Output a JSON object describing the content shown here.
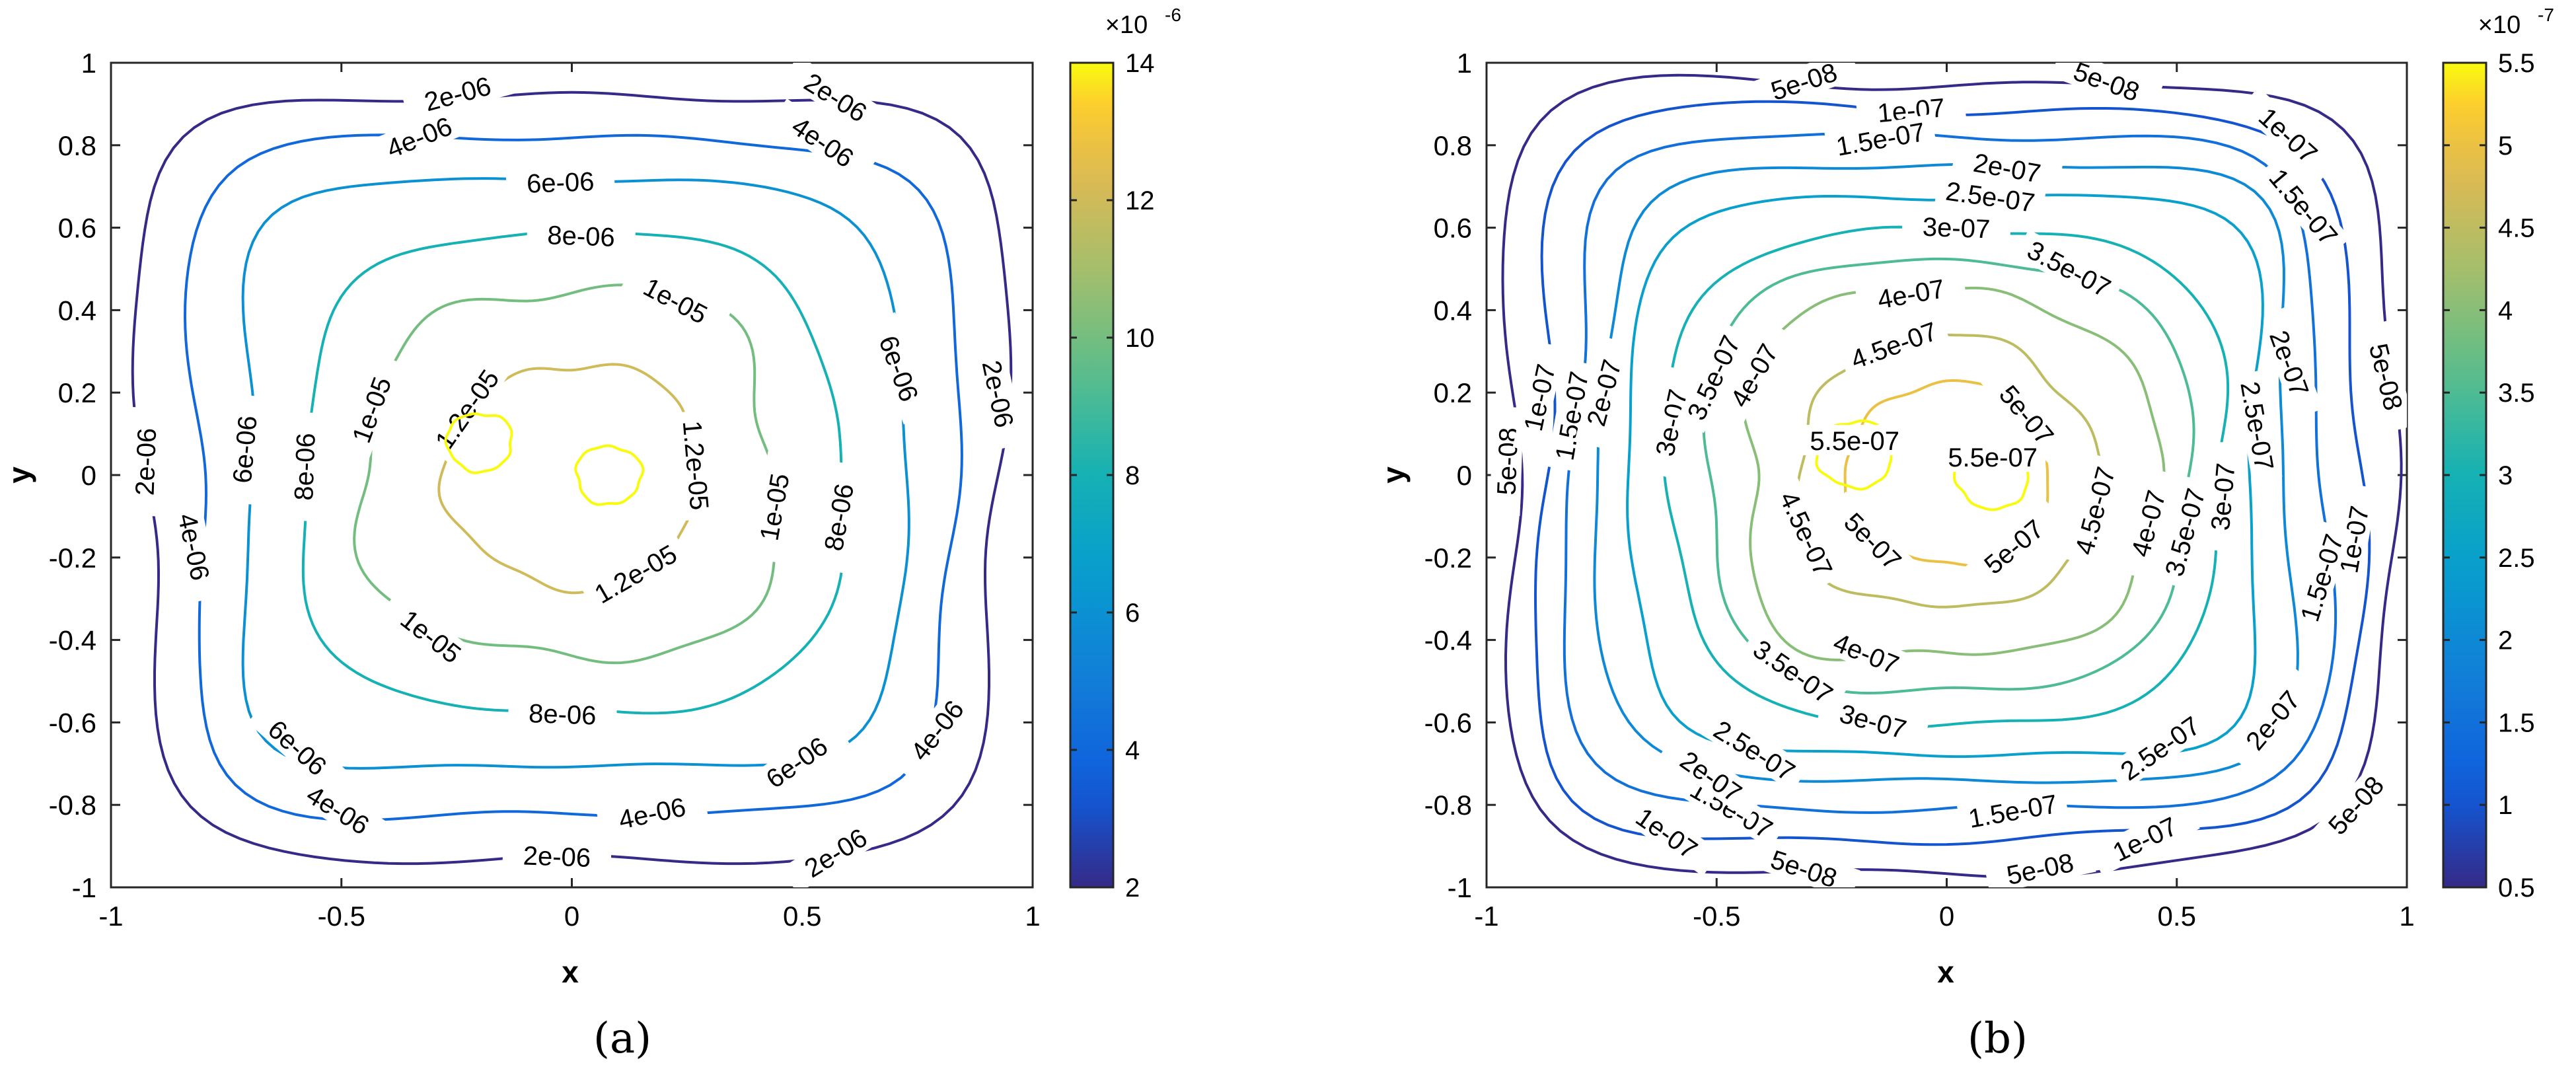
{
  "chart_data": [
    {
      "type": "contour",
      "caption": "(a)",
      "xlabel": "x",
      "ylabel": "y",
      "xlim": [
        -1,
        1
      ],
      "ylim": [
        -1,
        1
      ],
      "xticks": [
        -1,
        -0.5,
        0,
        0.5,
        1
      ],
      "xtick_labels": [
        "-1",
        "-0.5",
        "0",
        "0.5",
        "1"
      ],
      "yticks": [
        -1,
        -0.8,
        -0.6,
        -0.4,
        -0.2,
        0,
        0.2,
        0.4,
        0.6,
        0.8,
        1
      ],
      "ytick_labels": [
        "-1",
        "-0.8",
        "-0.6",
        "-0.4",
        "-0.2",
        "0",
        "0.2",
        "0.4",
        "0.6",
        "0.8",
        "1"
      ],
      "colorbar": {
        "min": 2,
        "max": 14,
        "exponent": "×10",
        "exponent_power": "-6",
        "ticks": [
          2,
          4,
          6,
          8,
          10,
          12,
          14
        ],
        "tick_labels": [
          "2",
          "4",
          "6",
          "8",
          "10",
          "12",
          "14"
        ]
      },
      "levels": [
        {
          "value": 2,
          "label": "2e-06",
          "radius": 0.925,
          "label_angles": [
            105,
            58,
            178,
            12,
            268,
            302
          ]
        },
        {
          "value": 4,
          "label": "4e-06",
          "radius": 0.82,
          "label_angles": [
            112,
            56,
            192,
            322,
            238,
            282
          ]
        },
        {
          "value": 6,
          "label": "6e-06",
          "radius": 0.71,
          "label_angles": [
            92,
            20,
            175,
            228,
            305
          ]
        },
        {
          "value": 8,
          "label": "8e-06",
          "radius": 0.58,
          "label_angles": [
            88,
            178,
            350,
            268
          ]
        },
        {
          "value": 10,
          "label": "1e-05",
          "radius": 0.44,
          "label_angles": [
            62,
            160,
            350,
            232
          ]
        },
        {
          "value": 12,
          "label": "1.2e-05",
          "radius": 0.27,
          "label_angles": [
            145,
            5,
            300
          ]
        },
        {
          "value": 14,
          "label": "",
          "radius": 0.07,
          "label_angles": [],
          "centers": [
            [
              -0.2,
              0.08
            ],
            [
              0.08,
              0.0
            ]
          ]
        }
      ]
    },
    {
      "type": "contour",
      "caption": "(b)",
      "xlabel": "x",
      "ylabel": "y",
      "xlim": [
        -1,
        1
      ],
      "ylim": [
        -1,
        1
      ],
      "xticks": [
        -1,
        -0.5,
        0,
        0.5,
        1
      ],
      "xtick_labels": [
        "-1",
        "-0.5",
        "0",
        "0.5",
        "1"
      ],
      "yticks": [
        -1,
        -0.8,
        -0.6,
        -0.4,
        -0.2,
        0,
        0.2,
        0.4,
        0.6,
        0.8,
        1
      ],
      "ytick_labels": [
        "-1",
        "-0.8",
        "-0.6",
        "-0.4",
        "-0.2",
        "0",
        "0.2",
        "0.4",
        "0.6",
        "0.8",
        "1"
      ],
      "colorbar": {
        "min": 0.5,
        "max": 5.5,
        "exponent": "×10",
        "exponent_power": "-7",
        "ticks": [
          0.5,
          1,
          1.5,
          2,
          2.5,
          3,
          3.5,
          4,
          4.5,
          5,
          5.5
        ],
        "tick_labels": [
          "0.5",
          "1",
          "1.5",
          "2",
          "2.5",
          "3",
          "3.5",
          "4",
          "4.5",
          "5",
          "5.5"
        ]
      },
      "levels": [
        {
          "value": 0.5,
          "label": "5e-08",
          "radius": 0.955,
          "label_angles": [
            108,
            70,
            178,
            14,
            252,
            282,
            318
          ]
        },
        {
          "value": 1,
          "label": "1e-07",
          "radius": 0.885,
          "label_angles": [
            95,
            48,
            168,
            350,
            235,
            296
          ]
        },
        {
          "value": 1.5,
          "label": "1.5e-07",
          "radius": 0.815,
          "label_angles": [
            100,
            40,
            170,
            343,
            240,
            280
          ]
        },
        {
          "value": 2,
          "label": "2e-07",
          "radius": 0.745,
          "label_angles": [
            80,
            20,
            165,
            235,
            320
          ]
        },
        {
          "value": 2.5,
          "label": "2.5e-07",
          "radius": 0.675,
          "label_angles": [
            82,
            10,
            238,
            305
          ]
        },
        {
          "value": 3,
          "label": "3e-07",
          "radius": 0.6,
          "label_angles": [
            88,
            168,
            355,
            255
          ]
        },
        {
          "value": 3.5,
          "label": "3.5e-07",
          "radius": 0.52,
          "label_angles": [
            62,
            155,
            345,
            235
          ]
        },
        {
          "value": 4,
          "label": "4e-07",
          "radius": 0.44,
          "label_angles": [
            100,
            150,
            345,
            248
          ]
        },
        {
          "value": 4.5,
          "label": "4.5e-07",
          "radius": 0.33,
          "label_angles": [
            110,
            205,
            345
          ]
        },
        {
          "value": 5,
          "label": "5e-07",
          "radius": 0.22,
          "label_angles": [
            40,
            225,
            310
          ]
        },
        {
          "value": 5.5,
          "label": "5.5e-07",
          "radius": 0.08,
          "label_angles": [],
          "centers": [
            [
              -0.2,
              0.05
            ],
            [
              0.1,
              0.0
            ]
          ],
          "center_labels": [
            [
              -0.2,
              0.08
            ],
            [
              0.1,
              0.04
            ]
          ]
        }
      ]
    }
  ]
}
